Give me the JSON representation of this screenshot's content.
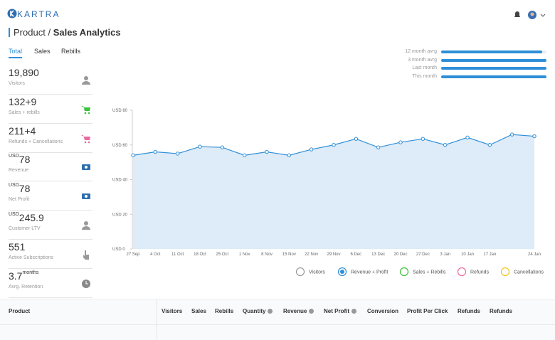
{
  "brand": "KARTRA",
  "header": {
    "section": "Product",
    "separator": "/",
    "title": "Sales Analytics"
  },
  "tabs": [
    "Total",
    "Sales",
    "Rebills"
  ],
  "stats": [
    {
      "value": "19,890",
      "label": "Visitors"
    },
    {
      "value": "132+9",
      "label": "Sales + rebills"
    },
    {
      "value": "211+4",
      "label": "Refunds + Cancellations"
    },
    {
      "prefix": "USD",
      "value": "78",
      "label": "Revenue"
    },
    {
      "prefix": "USD",
      "value": "78",
      "label": "Net Profit"
    },
    {
      "prefix": "USD",
      "value": "245.9",
      "label": "Customer LTV"
    },
    {
      "value": "551",
      "label": "Active Subscriptions"
    },
    {
      "value": "3.7",
      "suffix": "months",
      "label": "Avrg. Retention"
    }
  ],
  "comparison": [
    {
      "label": "12 month avrg",
      "value": 96
    },
    {
      "label": "3 month avrg",
      "value": 100
    },
    {
      "label": "Last month",
      "value": 100
    },
    {
      "label": "This month",
      "value": 100
    }
  ],
  "comparison_max": 100,
  "chart_data": {
    "type": "line",
    "categories": [
      "27 Sep",
      "4 Oct",
      "11 Oct",
      "18 Oct",
      "25 Oct",
      "1 Nov",
      "8 Nov",
      "15 Nov",
      "22 Nov",
      "29 Nov",
      "6 Dec",
      "13 Dec",
      "20 Dec",
      "27 Dec",
      "3 Jan",
      "10 Jan",
      "17 Jan",
      null,
      "24 Jan"
    ],
    "series": [
      {
        "name": "Revenue + Profit",
        "color": "#2f8fd8",
        "values": [
          54,
          56,
          55,
          59,
          58.6,
          54,
          56,
          54,
          57.4,
          60,
          63.5,
          58.6,
          61.5,
          63.5,
          60,
          64.3,
          60,
          66,
          65
        ]
      }
    ],
    "inactive_series": [
      {
        "name": "Visitors",
        "color": "#999999"
      },
      {
        "name": "Sales + Rebills",
        "color": "#3cc23c"
      },
      {
        "name": "Refunds",
        "color": "#e86aa0"
      },
      {
        "name": "Cancellations",
        "color": "#f0c419"
      }
    ],
    "ylim": [
      0,
      80
    ],
    "yticks": [
      {
        "value": 0,
        "label": "USD 0"
      },
      {
        "value": 20,
        "label": "USD 20"
      },
      {
        "value": 40,
        "label": "USD 40"
      },
      {
        "value": 60,
        "label": "USD 60"
      },
      {
        "value": 80,
        "label": "USD 80"
      }
    ],
    "area": true
  },
  "table": {
    "columns": [
      "Product",
      "Visitors",
      "Sales",
      "Rebills",
      "Quantity",
      "Revenue",
      "Net Profit",
      "Conversion",
      "Profit Per Click",
      "Refunds",
      "Refunds"
    ]
  }
}
